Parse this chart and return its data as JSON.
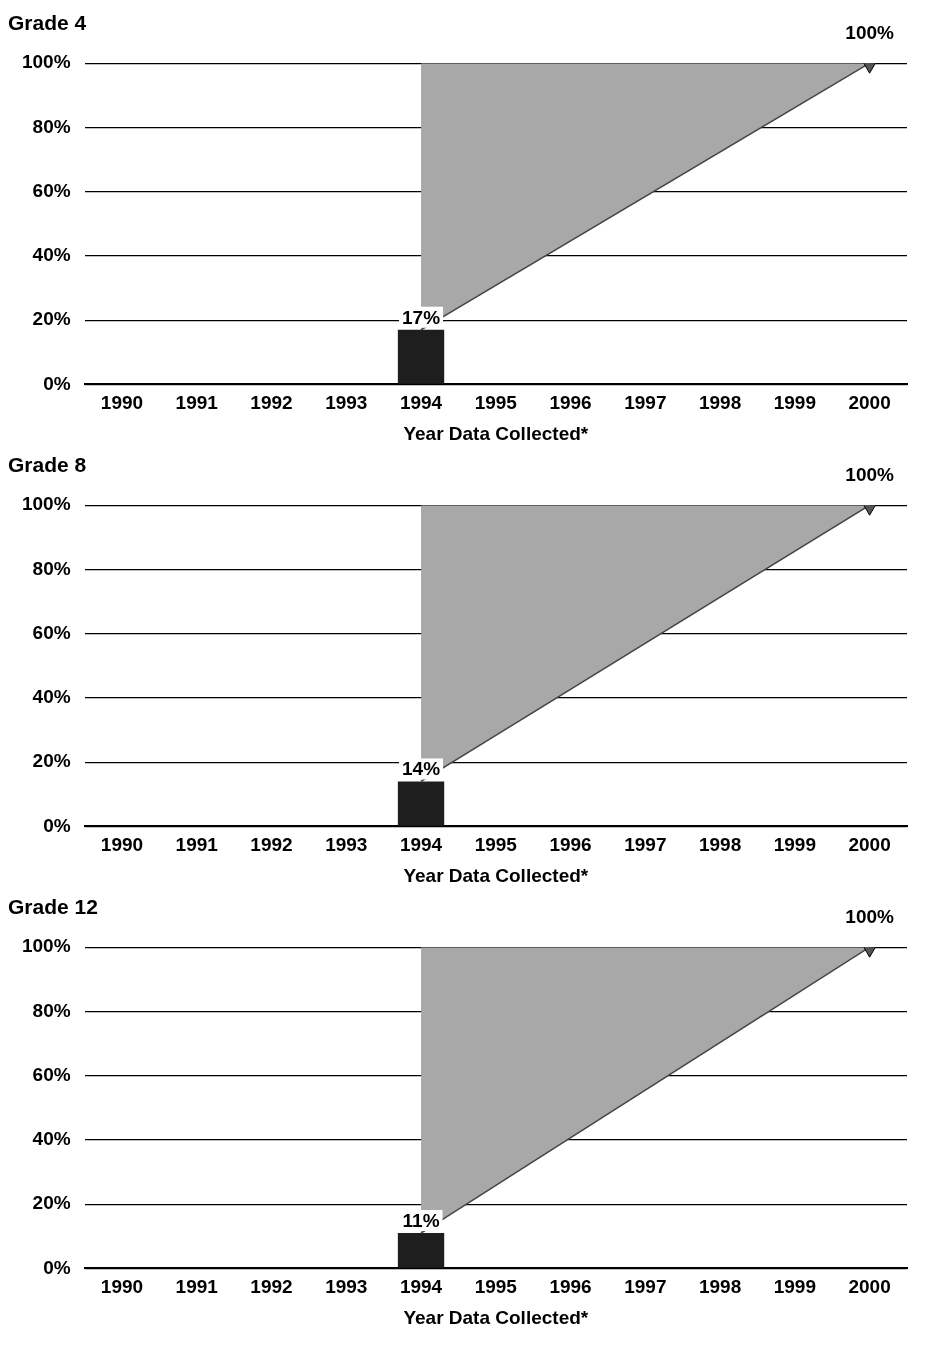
{
  "chart_data": [
    {
      "type": "bar",
      "title": "Grade 4",
      "xlabel": "Year Data Collected*",
      "categories": [
        "1990",
        "1991",
        "1992",
        "1993",
        "1994",
        "1995",
        "1996",
        "1997",
        "1998",
        "1999",
        "2000"
      ],
      "ylim": [
        0,
        100
      ],
      "yticks": [
        {
          "value": 0,
          "label": "0%"
        },
        {
          "value": 20,
          "label": "20%"
        },
        {
          "value": 40,
          "label": "40%"
        },
        {
          "value": 60,
          "label": "60%"
        },
        {
          "value": 80,
          "label": "80%"
        },
        {
          "value": 100,
          "label": "100%"
        }
      ],
      "grid": "y",
      "legend": false,
      "series": [
        {
          "color": "#1e1e1e",
          "values": [
            null,
            null,
            null,
            null,
            17,
            null,
            null,
            null,
            null,
            null,
            null
          ],
          "value_labels": [
            null,
            null,
            null,
            null,
            "17%",
            null,
            null,
            null,
            null,
            null,
            null
          ]
        },
        {
          "type": "line",
          "color": "#444444",
          "values": [
            null,
            null,
            null,
            null,
            17,
            null,
            null,
            null,
            null,
            null,
            100
          ],
          "lower": [
            null,
            null,
            null,
            null,
            17,
            null,
            null,
            null,
            null,
            null,
            100
          ],
          "upper": [
            null,
            null,
            null,
            null,
            100,
            null,
            null,
            null,
            null,
            null,
            100
          ]
        },
        {
          "type": "scatter",
          "color": "#555555",
          "marker": "triangle",
          "values": [
            null,
            null,
            null,
            null,
            null,
            null,
            null,
            null,
            null,
            null,
            100
          ],
          "value_labels": [
            null,
            null,
            null,
            null,
            null,
            null,
            null,
            null,
            null,
            null,
            "100%"
          ]
        }
      ]
    },
    {
      "type": "bar",
      "title": "Grade 8",
      "xlabel": "Year Data Collected*",
      "categories": [
        "1990",
        "1991",
        "1992",
        "1993",
        "1994",
        "1995",
        "1996",
        "1997",
        "1998",
        "1999",
        "2000"
      ],
      "ylim": [
        0,
        100
      ],
      "yticks": [
        {
          "value": 0,
          "label": "0%"
        },
        {
          "value": 20,
          "label": "20%"
        },
        {
          "value": 40,
          "label": "40%"
        },
        {
          "value": 60,
          "label": "60%"
        },
        {
          "value": 80,
          "label": "80%"
        },
        {
          "value": 100,
          "label": "100%"
        }
      ],
      "grid": "y",
      "legend": false,
      "series": [
        {
          "color": "#1e1e1e",
          "values": [
            null,
            null,
            null,
            null,
            14,
            null,
            null,
            null,
            null,
            null,
            null
          ],
          "value_labels": [
            null,
            null,
            null,
            null,
            "14%",
            null,
            null,
            null,
            null,
            null,
            null
          ]
        },
        {
          "type": "line",
          "color": "#444444",
          "values": [
            null,
            null,
            null,
            null,
            14,
            null,
            null,
            null,
            null,
            null,
            100
          ],
          "lower": [
            null,
            null,
            null,
            null,
            14,
            null,
            null,
            null,
            null,
            null,
            100
          ],
          "upper": [
            null,
            null,
            null,
            null,
            100,
            null,
            null,
            null,
            null,
            null,
            100
          ]
        },
        {
          "type": "scatter",
          "color": "#555555",
          "marker": "triangle",
          "values": [
            null,
            null,
            null,
            null,
            null,
            null,
            null,
            null,
            null,
            null,
            100
          ],
          "value_labels": [
            null,
            null,
            null,
            null,
            null,
            null,
            null,
            null,
            null,
            null,
            "100%"
          ]
        }
      ]
    },
    {
      "type": "bar",
      "title": "Grade 12",
      "xlabel": "Year Data Collected*",
      "categories": [
        "1990",
        "1991",
        "1992",
        "1993",
        "1994",
        "1995",
        "1996",
        "1997",
        "1998",
        "1999",
        "2000"
      ],
      "ylim": [
        0,
        100
      ],
      "yticks": [
        {
          "value": 0,
          "label": "0%"
        },
        {
          "value": 20,
          "label": "20%"
        },
        {
          "value": 40,
          "label": "40%"
        },
        {
          "value": 60,
          "label": "60%"
        },
        {
          "value": 80,
          "label": "80%"
        },
        {
          "value": 100,
          "label": "100%"
        }
      ],
      "grid": "y",
      "legend": false,
      "series": [
        {
          "color": "#1e1e1e",
          "values": [
            null,
            null,
            null,
            null,
            11,
            null,
            null,
            null,
            null,
            null,
            null
          ],
          "value_labels": [
            null,
            null,
            null,
            null,
            "11%",
            null,
            null,
            null,
            null,
            null,
            null
          ]
        },
        {
          "type": "line",
          "color": "#444444",
          "values": [
            null,
            null,
            null,
            null,
            11,
            null,
            null,
            null,
            null,
            null,
            100
          ],
          "lower": [
            null,
            null,
            null,
            null,
            11,
            null,
            null,
            null,
            null,
            null,
            100
          ],
          "upper": [
            null,
            null,
            null,
            null,
            100,
            null,
            null,
            null,
            null,
            null,
            100
          ]
        },
        {
          "type": "scatter",
          "color": "#555555",
          "marker": "triangle",
          "values": [
            null,
            null,
            null,
            null,
            null,
            null,
            null,
            null,
            null,
            null,
            100
          ],
          "value_labels": [
            null,
            null,
            null,
            null,
            null,
            null,
            null,
            null,
            null,
            null,
            "100%"
          ]
        }
      ]
    }
  ]
}
